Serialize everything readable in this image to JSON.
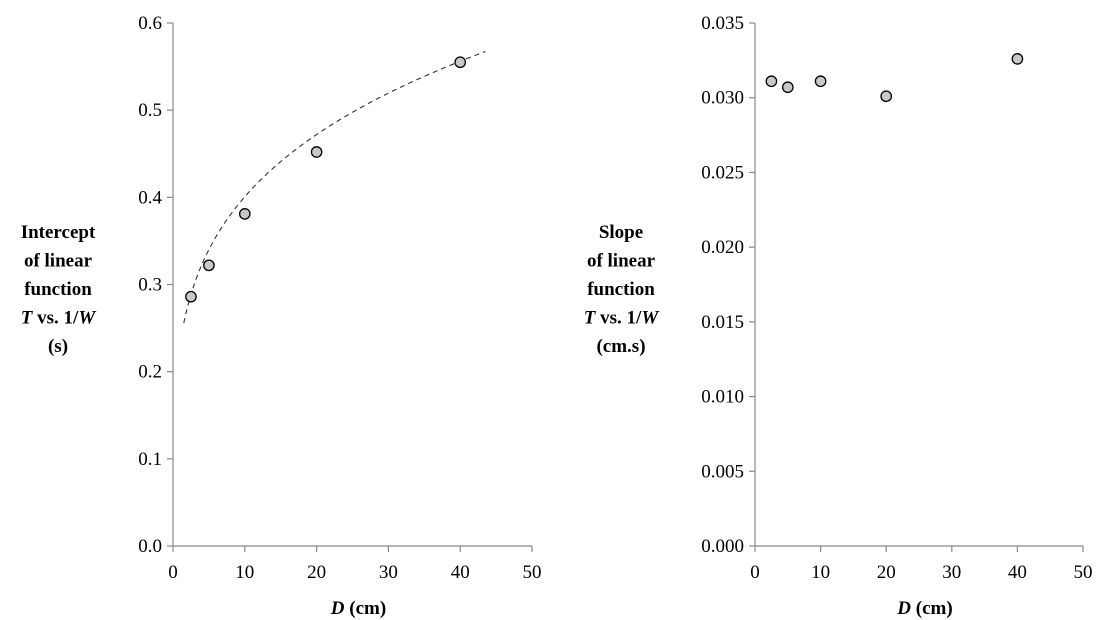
{
  "chart_data": [
    {
      "type": "scatter",
      "title": "",
      "xlabel": {
        "var": "D",
        "unit": " (cm)"
      },
      "ylabel_lines": [
        [
          {
            "t": "Intercept"
          }
        ],
        [
          {
            "t": "of linear"
          }
        ],
        [
          {
            "t": "function"
          }
        ],
        [
          {
            "t": "T",
            "i": true
          },
          {
            "t": " vs. 1/"
          },
          {
            "t": "W",
            "i": true
          }
        ],
        [
          {
            "t": "(s)"
          }
        ]
      ],
      "xlim": [
        0,
        50
      ],
      "ylim": [
        0,
        0.6
      ],
      "xticks": [
        "0",
        "10",
        "20",
        "30",
        "40",
        "50"
      ],
      "yticks": [
        "0.0",
        "0.1",
        "0.2",
        "0.3",
        "0.4",
        "0.5",
        "0.6"
      ],
      "series": [
        {
          "x": [
            2.5,
            5,
            10,
            20,
            40
          ],
          "y": [
            0.286,
            0.322,
            0.381,
            0.452,
            0.555
          ]
        }
      ],
      "trendline": {
        "style": "dashed",
        "fit": "power",
        "x_range": [
          1.5,
          43.5
        ],
        "a": 0.2325,
        "b": 0.2364
      },
      "marker": {
        "fill": "#c8c8c8",
        "stroke": "#000000"
      },
      "grid": false
    },
    {
      "type": "scatter",
      "title": "",
      "xlabel": {
        "var": "D",
        "unit": " (cm)"
      },
      "ylabel_lines": [
        [
          {
            "t": "Slope"
          }
        ],
        [
          {
            "t": "of linear"
          }
        ],
        [
          {
            "t": "function"
          }
        ],
        [
          {
            "t": "T",
            "i": true
          },
          {
            "t": " vs. 1/"
          },
          {
            "t": "W",
            "i": true
          }
        ],
        [
          {
            "t": "(cm.s)"
          }
        ]
      ],
      "xlim": [
        0,
        50
      ],
      "ylim": [
        0,
        0.035
      ],
      "xticks": [
        "0",
        "10",
        "20",
        "30",
        "40",
        "50"
      ],
      "yticks": [
        "0.000",
        "0.005",
        "0.010",
        "0.015",
        "0.020",
        "0.025",
        "0.030",
        "0.035"
      ],
      "series": [
        {
          "x": [
            2.5,
            5,
            10,
            20,
            40
          ],
          "y": [
            0.0311,
            0.0307,
            0.0311,
            0.0301,
            0.0326
          ]
        }
      ],
      "marker": {
        "fill": "#c8c8c8",
        "stroke": "#000000"
      },
      "grid": false
    }
  ]
}
